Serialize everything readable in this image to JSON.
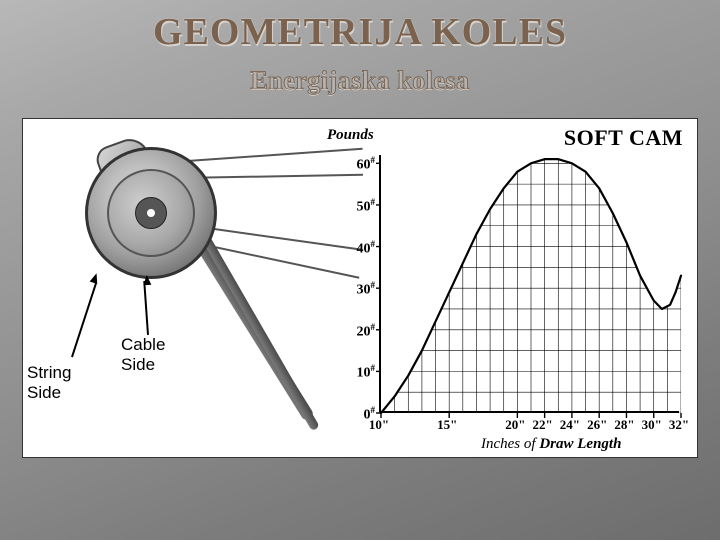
{
  "slide": {
    "title": "GEOMETRIJA KOLES",
    "title_color": "#7a624e",
    "title_shadow": "#d0ccc7",
    "subtitle": "Energijaska kolesa",
    "subtitle_fill": "#b5b0ab",
    "subtitle_stroke": "#7a624e",
    "bg_gradient_start": "#bdbdbd",
    "bg_gradient_end": "#6d6d6d"
  },
  "panel": {
    "bg": "#ffffff",
    "border": "#333333"
  },
  "wheel": {
    "label_string_side": "String\nSide",
    "label_cable_side": "Cable\nSide",
    "label_font_family": "Arial, sans-serif",
    "label_font_size": 17
  },
  "chart": {
    "title": "SOFT CAM",
    "title_fontsize": 22,
    "y_label": "Pounds",
    "x_label_prefix": "Inches of ",
    "x_label_bold": "Draw Length",
    "type": "line-area",
    "x_min": 10,
    "x_max": 32,
    "y_min": 0,
    "y_max": 62,
    "y_ticks": [
      0,
      10,
      20,
      30,
      40,
      50,
      60
    ],
    "y_tick_labels": [
      "0#",
      "10#",
      "20#",
      "30#",
      "40#",
      "50#",
      "60#"
    ],
    "x_ticks": [
      10,
      15,
      20,
      22,
      24,
      26,
      28,
      30,
      32
    ],
    "x_tick_labels": [
      "10\"",
      "15\"",
      "20\"",
      "22\"",
      "24\"",
      "26\"",
      "28\"",
      "30\"",
      "32\""
    ],
    "grid_x_step": 1,
    "grid_y_step": 5,
    "grid_color": "#000000",
    "grid_stroke": 0.6,
    "curve_color": "#000000",
    "curve_stroke": 2.2,
    "fill_pattern": "grid",
    "curve_points": [
      [
        10,
        0
      ],
      [
        11,
        4
      ],
      [
        12,
        9
      ],
      [
        13,
        15
      ],
      [
        14,
        22
      ],
      [
        15,
        29
      ],
      [
        16,
        36
      ],
      [
        17,
        43
      ],
      [
        18,
        49
      ],
      [
        19,
        54
      ],
      [
        20,
        58
      ],
      [
        21,
        60
      ],
      [
        22,
        61
      ],
      [
        23,
        61
      ],
      [
        24,
        60
      ],
      [
        25,
        58
      ],
      [
        26,
        54
      ],
      [
        27,
        48
      ],
      [
        28,
        41
      ],
      [
        29,
        33
      ],
      [
        30,
        27
      ],
      [
        30.6,
        25
      ],
      [
        31.2,
        26
      ],
      [
        31.6,
        29
      ],
      [
        32,
        33
      ]
    ]
  }
}
